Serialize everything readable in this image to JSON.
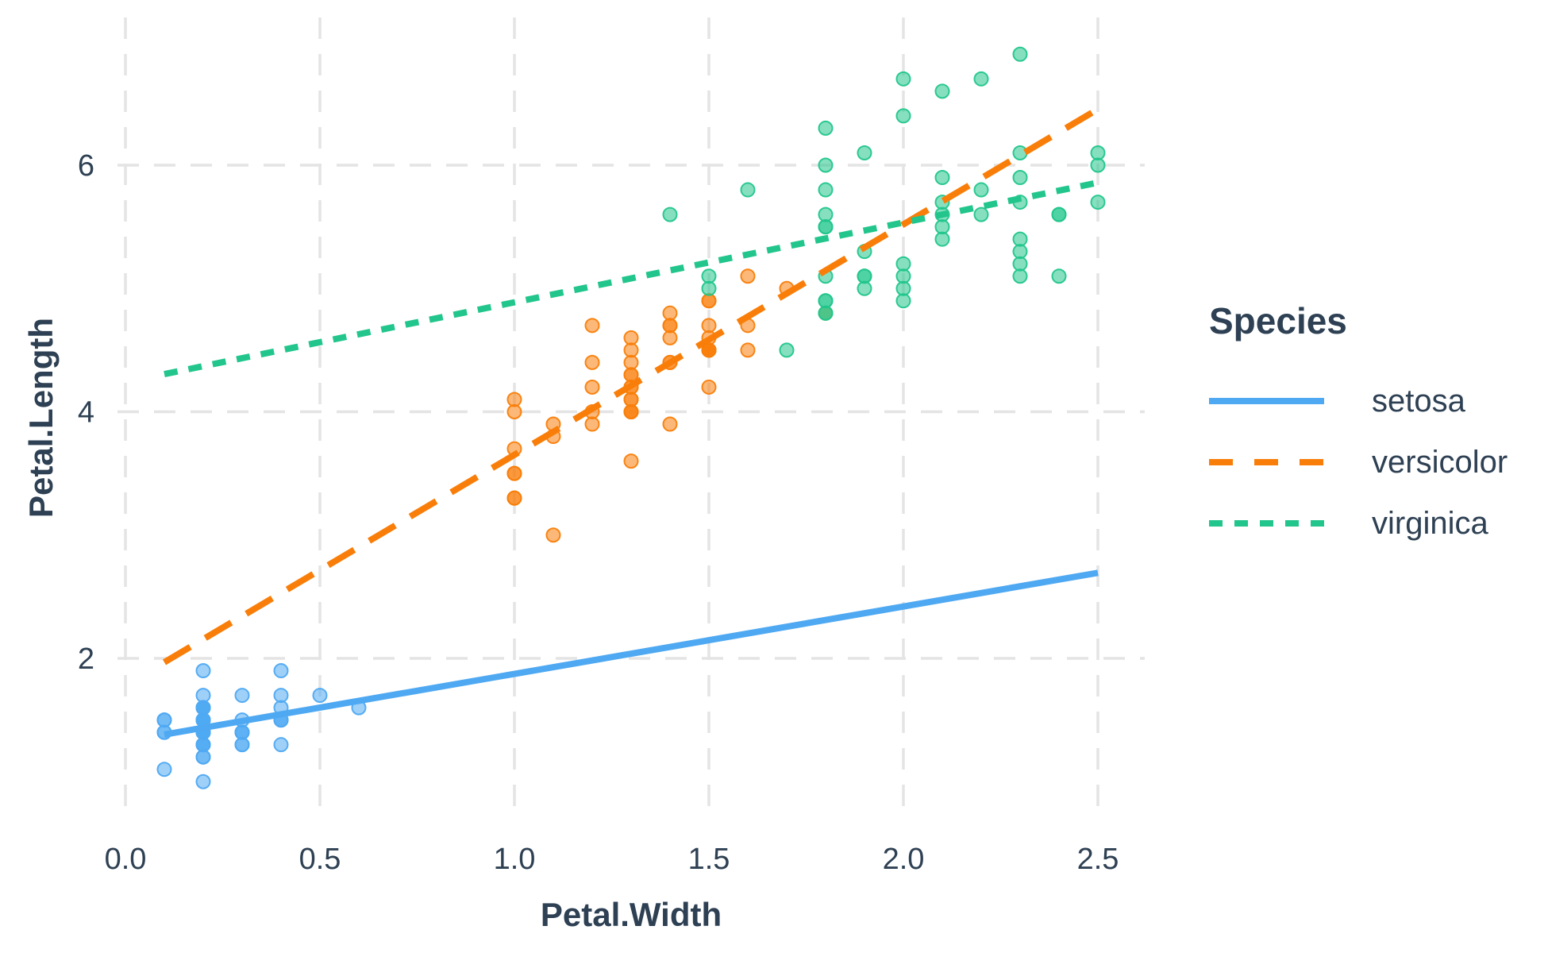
{
  "figure": {
    "background": "#FFFFFF",
    "text_color": "#2E4053"
  },
  "chart_data": {
    "type": "scatter",
    "title": "",
    "xlabel": "Petal.Width",
    "ylabel": "Petal.Length",
    "xlim": [
      -0.02,
      2.62
    ],
    "ylim": [
      0.705,
      7.195
    ],
    "grid": {
      "visible": true,
      "style": "dashed",
      "color": "#E4E4E4"
    },
    "x_ticks": [
      {
        "v": 0.0,
        "label": "0.0"
      },
      {
        "v": 0.5,
        "label": "0.5"
      },
      {
        "v": 1.0,
        "label": "1.0"
      },
      {
        "v": 1.5,
        "label": "1.5"
      },
      {
        "v": 2.0,
        "label": "2.0"
      },
      {
        "v": 2.5,
        "label": "2.5"
      }
    ],
    "y_ticks": [
      {
        "v": 2,
        "label": "2"
      },
      {
        "v": 4,
        "label": "4"
      },
      {
        "v": 6,
        "label": "6"
      }
    ],
    "legend": {
      "title": "Species",
      "position": "right"
    },
    "point_style": {
      "radius": 8.5,
      "fill_opacity": 0.55,
      "stroke_opacity": 0.95,
      "stroke_width": 2
    },
    "series": [
      {
        "name": "setosa",
        "color": "#4FA9F2",
        "line_style": "solid",
        "trend": {
          "intercept": 1.3276,
          "slope": 0.5465,
          "x_from": 0.1,
          "x_to": 2.5
        },
        "points": [
          [
            0.2,
            1.4
          ],
          [
            0.2,
            1.4
          ],
          [
            0.2,
            1.3
          ],
          [
            0.2,
            1.5
          ],
          [
            0.2,
            1.4
          ],
          [
            0.4,
            1.7
          ],
          [
            0.3,
            1.4
          ],
          [
            0.2,
            1.5
          ],
          [
            0.2,
            1.4
          ],
          [
            0.1,
            1.5
          ],
          [
            0.2,
            1.5
          ],
          [
            0.2,
            1.6
          ],
          [
            0.1,
            1.4
          ],
          [
            0.1,
            1.1
          ],
          [
            0.2,
            1.2
          ],
          [
            0.4,
            1.5
          ],
          [
            0.4,
            1.3
          ],
          [
            0.3,
            1.4
          ],
          [
            0.3,
            1.7
          ],
          [
            0.3,
            1.5
          ],
          [
            0.2,
            1.7
          ],
          [
            0.4,
            1.5
          ],
          [
            0.2,
            1.0
          ],
          [
            0.5,
            1.7
          ],
          [
            0.2,
            1.9
          ],
          [
            0.2,
            1.6
          ],
          [
            0.4,
            1.6
          ],
          [
            0.2,
            1.5
          ],
          [
            0.2,
            1.4
          ],
          [
            0.2,
            1.6
          ],
          [
            0.2,
            1.6
          ],
          [
            0.4,
            1.5
          ],
          [
            0.1,
            1.5
          ],
          [
            0.2,
            1.4
          ],
          [
            0.2,
            1.5
          ],
          [
            0.2,
            1.2
          ],
          [
            0.2,
            1.3
          ],
          [
            0.1,
            1.4
          ],
          [
            0.2,
            1.3
          ],
          [
            0.2,
            1.5
          ],
          [
            0.3,
            1.3
          ],
          [
            0.3,
            1.3
          ],
          [
            0.2,
            1.3
          ],
          [
            0.6,
            1.6
          ],
          [
            0.4,
            1.9
          ],
          [
            0.3,
            1.4
          ],
          [
            0.2,
            1.6
          ],
          [
            0.2,
            1.4
          ],
          [
            0.2,
            1.5
          ],
          [
            0.2,
            1.4
          ]
        ]
      },
      {
        "name": "versicolor",
        "color": "#F97E09",
        "line_style": "longdash",
        "trend": {
          "intercept": 1.7813,
          "slope": 1.8693,
          "x_from": 0.1,
          "x_to": 2.5
        },
        "points": [
          [
            1.4,
            4.7
          ],
          [
            1.5,
            4.5
          ],
          [
            1.5,
            4.9
          ],
          [
            1.3,
            4.0
          ],
          [
            1.5,
            4.6
          ],
          [
            1.3,
            4.5
          ],
          [
            1.6,
            4.7
          ],
          [
            1.0,
            3.3
          ],
          [
            1.3,
            4.6
          ],
          [
            1.4,
            3.9
          ],
          [
            1.0,
            3.5
          ],
          [
            1.5,
            4.2
          ],
          [
            1.0,
            4.0
          ],
          [
            1.4,
            4.7
          ],
          [
            1.3,
            3.6
          ],
          [
            1.4,
            4.4
          ],
          [
            1.5,
            4.5
          ],
          [
            1.0,
            4.1
          ],
          [
            1.5,
            4.5
          ],
          [
            1.1,
            3.9
          ],
          [
            1.8,
            4.8
          ],
          [
            1.3,
            4.0
          ],
          [
            1.5,
            4.9
          ],
          [
            1.2,
            4.7
          ],
          [
            1.3,
            4.3
          ],
          [
            1.4,
            4.4
          ],
          [
            1.4,
            4.8
          ],
          [
            1.7,
            5.0
          ],
          [
            1.5,
            4.5
          ],
          [
            1.0,
            3.5
          ],
          [
            1.1,
            3.8
          ],
          [
            1.0,
            3.7
          ],
          [
            1.2,
            3.9
          ],
          [
            1.6,
            5.1
          ],
          [
            1.5,
            4.5
          ],
          [
            1.6,
            4.5
          ],
          [
            1.5,
            4.7
          ],
          [
            1.3,
            4.4
          ],
          [
            1.3,
            4.1
          ],
          [
            1.3,
            4.0
          ],
          [
            1.2,
            4.4
          ],
          [
            1.4,
            4.6
          ],
          [
            1.2,
            4.0
          ],
          [
            1.0,
            3.3
          ],
          [
            1.3,
            4.2
          ],
          [
            1.2,
            4.2
          ],
          [
            1.3,
            4.2
          ],
          [
            1.3,
            4.3
          ],
          [
            1.1,
            3.0
          ],
          [
            1.3,
            4.1
          ]
        ]
      },
      {
        "name": "virginica",
        "color": "#22C68C",
        "line_style": "dotted",
        "trend": {
          "intercept": 4.2407,
          "slope": 0.6471,
          "x_from": 0.1,
          "x_to": 2.5
        },
        "points": [
          [
            2.5,
            6.0
          ],
          [
            1.9,
            5.1
          ],
          [
            2.1,
            5.9
          ],
          [
            1.8,
            5.6
          ],
          [
            2.2,
            5.8
          ],
          [
            2.1,
            6.6
          ],
          [
            1.7,
            4.5
          ],
          [
            1.8,
            6.3
          ],
          [
            1.8,
            5.8
          ],
          [
            2.5,
            6.1
          ],
          [
            2.0,
            5.1
          ],
          [
            1.9,
            5.3
          ],
          [
            2.1,
            5.5
          ],
          [
            2.0,
            5.0
          ],
          [
            2.4,
            5.1
          ],
          [
            2.3,
            5.3
          ],
          [
            1.8,
            5.5
          ],
          [
            2.2,
            6.7
          ],
          [
            2.3,
            6.9
          ],
          [
            1.5,
            5.0
          ],
          [
            2.3,
            5.7
          ],
          [
            2.0,
            4.9
          ],
          [
            2.0,
            6.7
          ],
          [
            1.8,
            4.9
          ],
          [
            2.1,
            5.7
          ],
          [
            1.8,
            6.0
          ],
          [
            1.8,
            4.8
          ],
          [
            1.8,
            4.9
          ],
          [
            2.1,
            5.6
          ],
          [
            1.6,
            5.8
          ],
          [
            1.9,
            6.1
          ],
          [
            2.0,
            6.4
          ],
          [
            2.2,
            5.6
          ],
          [
            1.5,
            5.1
          ],
          [
            1.4,
            5.6
          ],
          [
            2.3,
            6.1
          ],
          [
            2.4,
            5.6
          ],
          [
            1.8,
            5.5
          ],
          [
            1.8,
            4.8
          ],
          [
            2.1,
            5.4
          ],
          [
            2.4,
            5.6
          ],
          [
            2.3,
            5.1
          ],
          [
            1.9,
            5.1
          ],
          [
            2.3,
            5.9
          ],
          [
            2.5,
            5.7
          ],
          [
            2.3,
            5.2
          ],
          [
            1.9,
            5.0
          ],
          [
            2.0,
            5.2
          ],
          [
            2.3,
            5.4
          ],
          [
            1.8,
            5.1
          ]
        ]
      }
    ]
  }
}
